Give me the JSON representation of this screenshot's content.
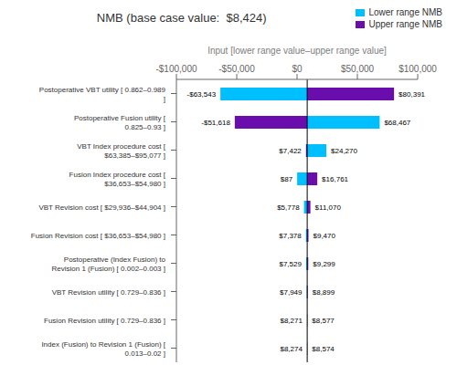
{
  "chart_data": {
    "type": "bar",
    "orientation": "horizontal",
    "title": "NMB (base case value:  $8,424)",
    "x_label": "Input [lower range value–upper range value]",
    "legend": "upper right",
    "base_case": 8424,
    "categories": [
      "Postoperative VBT utility [ 0.862–0.989 ]",
      "Postoperative Fusion utility [ 0.825–0.93 ]",
      "VBT Index procedure cost [ $63,385–$95,077 ]",
      "Fusion Index procedure cost [ $36,653–$54,980 ]",
      "VBT Revision cost [ $29,936–$44,904 ]",
      "Fusion Revision cost [ $36,653–$54,980 ]",
      "Postoperative (Index Fusion) to\nRevision 1 (Fusion) [ 0.002–0.003 ]",
      "VBT Revision utility [ 0.729–0.836 ]",
      "Fusion Revision utility [ 0.729–0.836 ]",
      "Index (Fusion) to Revision 1 (Fusion) [ 0.013–0.02 ]"
    ],
    "series": [
      {
        "name": "Lower range NMB",
        "color": "#00BFFF",
        "values": [
          -63543,
          -51618,
          7422,
          87,
          5778,
          7378,
          7529,
          7949,
          8271,
          8274
        ],
        "value_labels": [
          "-$63,543",
          "-$51,618",
          "$7,422",
          "$87",
          "$5,778",
          "$7,378",
          "$7,529",
          "$7,949",
          "$8,271",
          "$8,274"
        ],
        "colors": [
          "#00BFFF",
          "#6A0DAD",
          "#6A0DAD",
          "#00BFFF",
          "#00BFFF",
          "#00BFFF",
          "#00BFFF",
          "#00BFFF",
          "#00BFFF",
          "#00BFFF"
        ]
      },
      {
        "name": "Upper range NMB",
        "color": "#6A0DAD",
        "values": [
          80391,
          68467,
          24270,
          16761,
          11070,
          9470,
          9299,
          8899,
          8577,
          8574
        ],
        "value_labels": [
          "$80,391",
          "$68,467",
          "$24,270",
          "$16,761",
          "$11,070",
          "$9,470",
          "$9,299",
          "$8,899",
          "$8,577",
          "$8,574"
        ],
        "colors": [
          "#6A0DAD",
          "#00BFFF",
          "#00BFFF",
          "#6A0DAD",
          "#6A0DAD",
          "#6A0DAD",
          "#6A0DAD",
          "#6A0DAD",
          "#6A0DAD",
          "#6A0DAD"
        ]
      }
    ],
    "xlim": [
      -100000,
      100000
    ],
    "xticks": [
      {
        "value": -100000,
        "label": "-$100,000"
      },
      {
        "value": -50000,
        "label": "-$50,000"
      },
      {
        "value": 0,
        "label": "$0"
      },
      {
        "value": 50000,
        "label": "$50,000"
      },
      {
        "value": 100000,
        "label": "$100,000"
      }
    ]
  }
}
